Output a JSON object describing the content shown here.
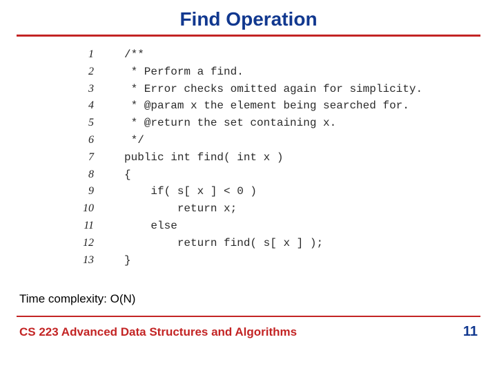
{
  "colors": {
    "title": "#11388f",
    "rule": "#c32424",
    "code": "#2a2a2a",
    "complexity": "#000000",
    "footer_course": "#c32424",
    "footer_page": "#11388f"
  },
  "title": "Find Operation",
  "code": {
    "lines": [
      {
        "n": "1",
        "text": "/**"
      },
      {
        "n": "2",
        "text": " * Perform a find."
      },
      {
        "n": "3",
        "text": " * Error checks omitted again for simplicity."
      },
      {
        "n": "4",
        "text": " * @param x the element being searched for."
      },
      {
        "n": "5",
        "text": " * @return the set containing x."
      },
      {
        "n": "6",
        "text": " */"
      },
      {
        "n": "7",
        "text": "public int find( int x )"
      },
      {
        "n": "8",
        "text": "{"
      },
      {
        "n": "9",
        "text": "    if( s[ x ] < 0 )"
      },
      {
        "n": "10",
        "text": "        return x;"
      },
      {
        "n": "11",
        "text": "    else"
      },
      {
        "n": "12",
        "text": "        return find( s[ x ] );"
      },
      {
        "n": "13",
        "text": "}"
      }
    ]
  },
  "complexity": "Time complexity: O(N)",
  "footer": {
    "course": "CS 223 Advanced Data Structures and Algorithms",
    "page": "11"
  }
}
